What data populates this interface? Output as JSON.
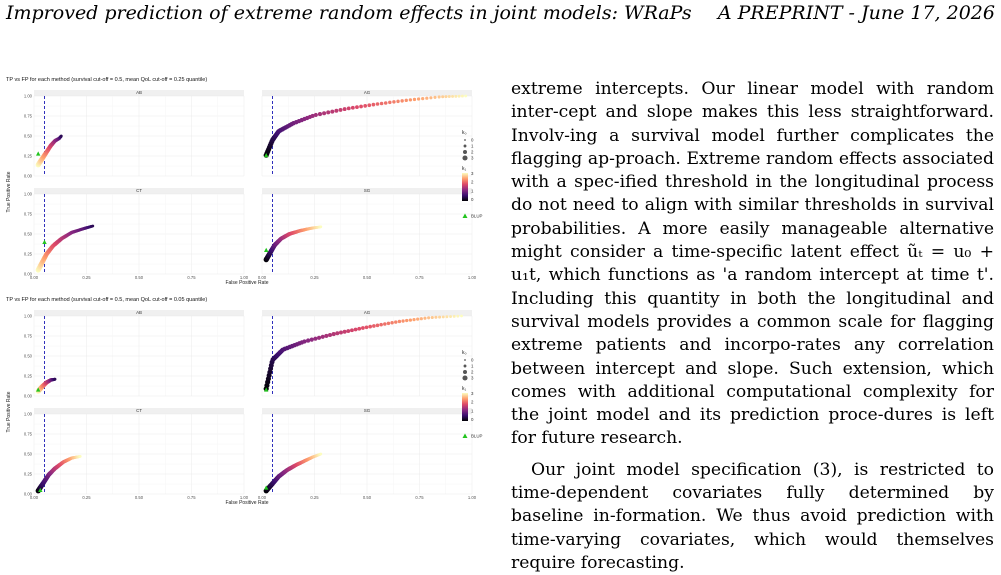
{
  "header": {
    "left": "Improved prediction of extreme random effects in joint models: WRaPs",
    "right": "A PREPRINT - June 17, 2026"
  },
  "body": {
    "p1": "extreme intercepts. Our linear model with random inter-­cept and slope makes this less straightforward. Involv-­ing a survival model further complicates the flagging ap-­proach. Extreme random effects associated with a spec-­ified threshold in the longitudinal process do not need to align with similar thresholds in survival probabilities. A more easily manageable alternative might consider a time-specific latent effect ũₜ = u₀ + u₁t, which functions as 'a random intercept at time t'. Including this quantity in both the longitudinal and survival models provides a common scale for flagging extreme patients and incorpo-­rates any correlation between intercept and slope. Such extension, which comes with additional computational complexity for the joint model and its prediction proce-­dures is left for future research.",
    "p2": "Our joint model specification (3), is restricted to time-­dependent covariates fully determined by baseline in-­formation. We thus avoid prediction with time-varying covariates, which would themselves require forecasting."
  },
  "chart_data": [
    {
      "type": "scatter",
      "title": "TP vs FP for each method  (survival cut-off = 0.5, mean QoL cut-off = 0.25 quantile)",
      "xlabel": "False Positive Rate",
      "ylabel": "True Positive Rate",
      "xticks": [
        "0.00",
        "0.25",
        "0.50",
        "0.75",
        "1.00"
      ],
      "yticks": [
        "0.00",
        "0.25",
        "0.50",
        "0.75",
        "1.00"
      ],
      "xlim": [
        0,
        1
      ],
      "ylim": [
        0,
        1
      ],
      "cutoff_x": 0.05,
      "panels": [
        {
          "name": "AB",
          "curve": [
            [
              0.02,
              0.14
            ],
            [
              0.04,
              0.22
            ],
            [
              0.06,
              0.3
            ],
            [
              0.08,
              0.38
            ],
            [
              0.1,
              0.44
            ],
            [
              0.12,
              0.47
            ],
            [
              0.13,
              0.5
            ]
          ],
          "blup": [
            0.02,
            0.28
          ]
        },
        {
          "name": "AG",
          "curve": [
            [
              0.02,
              0.26
            ],
            [
              0.05,
              0.45
            ],
            [
              0.08,
              0.56
            ],
            [
              0.15,
              0.66
            ],
            [
              0.25,
              0.76
            ],
            [
              0.4,
              0.84
            ],
            [
              0.55,
              0.9
            ],
            [
              0.7,
              0.95
            ],
            [
              0.85,
              0.99
            ],
            [
              0.97,
              1.0
            ]
          ],
          "blup": [
            0.02,
            0.26
          ]
        },
        {
          "name": "CT",
          "curve": [
            [
              0.02,
              0.05
            ],
            [
              0.04,
              0.15
            ],
            [
              0.06,
              0.25
            ],
            [
              0.09,
              0.35
            ],
            [
              0.13,
              0.44
            ],
            [
              0.18,
              0.52
            ],
            [
              0.24,
              0.57
            ],
            [
              0.28,
              0.6
            ]
          ],
          "blup": [
            0.05,
            0.4
          ]
        },
        {
          "name": "SG",
          "curve": [
            [
              0.02,
              0.18
            ],
            [
              0.04,
              0.27
            ],
            [
              0.06,
              0.36
            ],
            [
              0.09,
              0.44
            ],
            [
              0.13,
              0.5
            ],
            [
              0.18,
              0.54
            ],
            [
              0.23,
              0.57
            ],
            [
              0.28,
              0.59
            ]
          ],
          "blup": [
            0.02,
            0.3
          ]
        }
      ],
      "legend": {
        "size_title": "k₀",
        "size_levels": [
          "0",
          "1",
          "2",
          "3"
        ],
        "color_title": "k₁",
        "color_levels": [
          "3",
          "2",
          "1",
          "0"
        ],
        "blup": "BLUP"
      }
    },
    {
      "type": "scatter",
      "title": "TP vs FP for each method  (survival cut-off = 0.5, mean QoL cut-off = 0.05 quantile)",
      "xlabel": "False Positive Rate",
      "ylabel": "True Positive Rate",
      "xticks": [
        "0.00",
        "0.25",
        "0.50",
        "0.75",
        "1.00"
      ],
      "yticks": [
        "0.00",
        "0.25",
        "0.50",
        "0.75",
        "1.00"
      ],
      "xlim": [
        0,
        1
      ],
      "ylim": [
        0,
        1
      ],
      "cutoff_x": 0.05,
      "panels": [
        {
          "name": "AB",
          "curve": [
            [
              0.02,
              0.06
            ],
            [
              0.04,
              0.12
            ],
            [
              0.06,
              0.17
            ],
            [
              0.08,
              0.2
            ],
            [
              0.1,
              0.21
            ]
          ],
          "blup": [
            0.02,
            0.08
          ]
        },
        {
          "name": "AG",
          "curve": [
            [
              0.02,
              0.09
            ],
            [
              0.05,
              0.45
            ],
            [
              0.1,
              0.58
            ],
            [
              0.2,
              0.68
            ],
            [
              0.35,
              0.78
            ],
            [
              0.5,
              0.86
            ],
            [
              0.65,
              0.93
            ],
            [
              0.8,
              0.98
            ],
            [
              0.95,
              1.0
            ]
          ],
          "blup": [
            0.02,
            0.08
          ]
        },
        {
          "name": "CT",
          "curve": [
            [
              0.02,
              0.04
            ],
            [
              0.04,
              0.12
            ],
            [
              0.07,
              0.24
            ],
            [
              0.1,
              0.32
            ],
            [
              0.14,
              0.4
            ],
            [
              0.18,
              0.45
            ],
            [
              0.22,
              0.47
            ]
          ],
          "blup": [
            0.03,
            0.05
          ]
        },
        {
          "name": "SG",
          "curve": [
            [
              0.02,
              0.04
            ],
            [
              0.05,
              0.13
            ],
            [
              0.08,
              0.22
            ],
            [
              0.12,
              0.3
            ],
            [
              0.16,
              0.36
            ],
            [
              0.2,
              0.41
            ],
            [
              0.24,
              0.46
            ],
            [
              0.28,
              0.5
            ]
          ],
          "blup": [
            0.02,
            0.08
          ]
        }
      ],
      "legend": {
        "size_title": "k₀",
        "size_levels": [
          "0",
          "1",
          "2",
          "3"
        ],
        "color_title": "k₁",
        "color_levels": [
          "3",
          "2",
          "1",
          "0"
        ],
        "blup": "BLUP"
      }
    }
  ]
}
